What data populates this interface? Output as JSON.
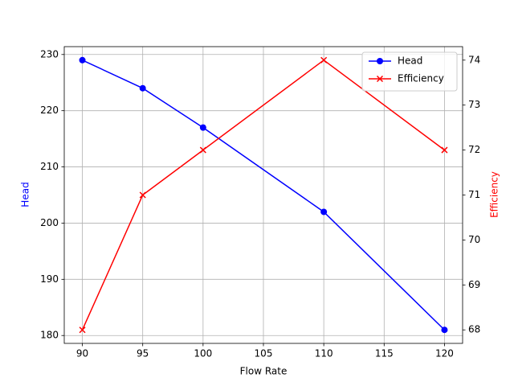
{
  "chart_data": {
    "type": "line",
    "x_label": "Flow Rate",
    "y_label": "Head",
    "y2_label": "Efficiency",
    "x": [
      90,
      95,
      100,
      110,
      120
    ],
    "series": [
      {
        "name": "Head",
        "color": "#0000ff",
        "marker": "o",
        "values": [
          229,
          224,
          217,
          202,
          181
        ]
      },
      {
        "name": "Efficiency",
        "color": "#ff0000",
        "marker": "x",
        "axis": "y2",
        "values": [
          68,
          71,
          72,
          74,
          72
        ]
      }
    ],
    "xlim": [
      88.5,
      121.5
    ],
    "xticks": [
      90,
      95,
      100,
      105,
      110,
      115,
      120
    ],
    "ylim": [
      178.6,
      231.4
    ],
    "yticks": [
      180,
      190,
      200,
      210,
      220,
      230
    ],
    "y2lim": [
      67.7,
      74.3
    ],
    "y2ticks": [
      68,
      69,
      70,
      71,
      72,
      73,
      74
    ],
    "grid": true,
    "legend": "upper right"
  }
}
